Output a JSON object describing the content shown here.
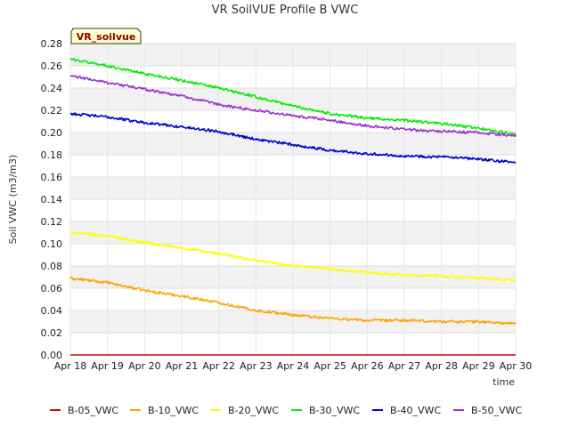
{
  "chart_data": {
    "type": "line",
    "title": "VR SoilVUE Profile B VWC",
    "xlabel": "time",
    "ylabel": "Soil VWC (m3/m3)",
    "annotation": "VR_soilvue",
    "x_ticks": [
      "Apr 18",
      "Apr 19",
      "Apr 20",
      "Apr 21",
      "Apr 22",
      "Apr 23",
      "Apr 24",
      "Apr 25",
      "Apr 26",
      "Apr 27",
      "Apr 28",
      "Apr 29",
      "Apr 30"
    ],
    "y_ticks": [
      "0.00",
      "0.02",
      "0.04",
      "0.06",
      "0.08",
      "0.10",
      "0.12",
      "0.14",
      "0.16",
      "0.18",
      "0.20",
      "0.22",
      "0.24",
      "0.26",
      "0.28"
    ],
    "ylim": [
      0,
      0.28
    ],
    "grid": true,
    "legend_position": "bottom",
    "series": [
      {
        "name": "B-05_VWC",
        "color": "#dd0000",
        "values": [
          0.0,
          0.0,
          0.0,
          0.0,
          0.0,
          0.0,
          0.0,
          0.0,
          0.0,
          0.0,
          0.0,
          0.0,
          0.0
        ]
      },
      {
        "name": "B-10_VWC",
        "color": "#ffa500",
        "values": [
          0.069,
          0.065,
          0.058,
          0.053,
          0.047,
          0.04,
          0.036,
          0.033,
          0.031,
          0.031,
          0.03,
          0.03,
          0.028
        ]
      },
      {
        "name": "B-20_VWC",
        "color": "#ffff00",
        "values": [
          0.11,
          0.107,
          0.101,
          0.096,
          0.091,
          0.085,
          0.08,
          0.077,
          0.074,
          0.072,
          0.071,
          0.069,
          0.067
        ]
      },
      {
        "name": "B-30_VWC",
        "color": "#00ee00",
        "values": [
          0.266,
          0.26,
          0.253,
          0.247,
          0.24,
          0.232,
          0.224,
          0.217,
          0.213,
          0.211,
          0.208,
          0.204,
          0.198
        ]
      },
      {
        "name": "B-40_VWC",
        "color": "#0000cc",
        "values": [
          0.217,
          0.214,
          0.209,
          0.205,
          0.201,
          0.194,
          0.189,
          0.184,
          0.181,
          0.179,
          0.178,
          0.176,
          0.173
        ]
      },
      {
        "name": "B-50_VWC",
        "color": "#9932cc",
        "values": [
          0.251,
          0.245,
          0.239,
          0.233,
          0.225,
          0.22,
          0.215,
          0.211,
          0.206,
          0.203,
          0.201,
          0.2,
          0.197
        ]
      }
    ]
  }
}
